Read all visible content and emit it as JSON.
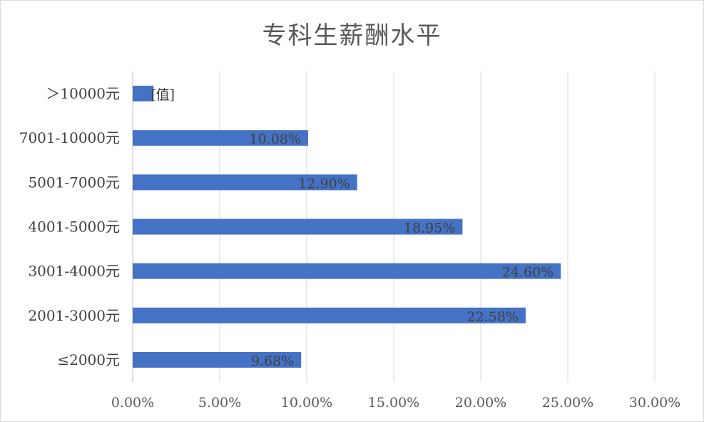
{
  "chart_data": {
    "type": "bar",
    "orientation": "horizontal",
    "title": "专科生薪酬水平",
    "categories": [
      ">10000元",
      "7001-10000元",
      "5001-7000元",
      "4001-5000元",
      "3001-4000元",
      "2001-3000元",
      "≤2000元"
    ],
    "display_categories": [
      "＞10000元",
      "7001-10000元",
      "5001-7000元",
      "4001-5000元",
      "3001-4000元",
      "2001-3000元",
      "≤2000元"
    ],
    "values": [
      1.2,
      10.08,
      12.9,
      18.95,
      24.6,
      22.58,
      9.68
    ],
    "data_labels": [
      "[值]",
      "10.08%",
      "12.90%",
      "18.95%",
      "24.60%",
      "22.58%",
      "9.68%"
    ],
    "x_ticks": [
      "0.00%",
      "5.00%",
      "10.00%",
      "15.00%",
      "20.00%",
      "25.00%",
      "30.00%"
    ],
    "xlim": [
      0,
      30
    ],
    "grid": true,
    "legend": "none",
    "bar_color": "#4472C4",
    "grid_color": "#d9d9d9"
  }
}
